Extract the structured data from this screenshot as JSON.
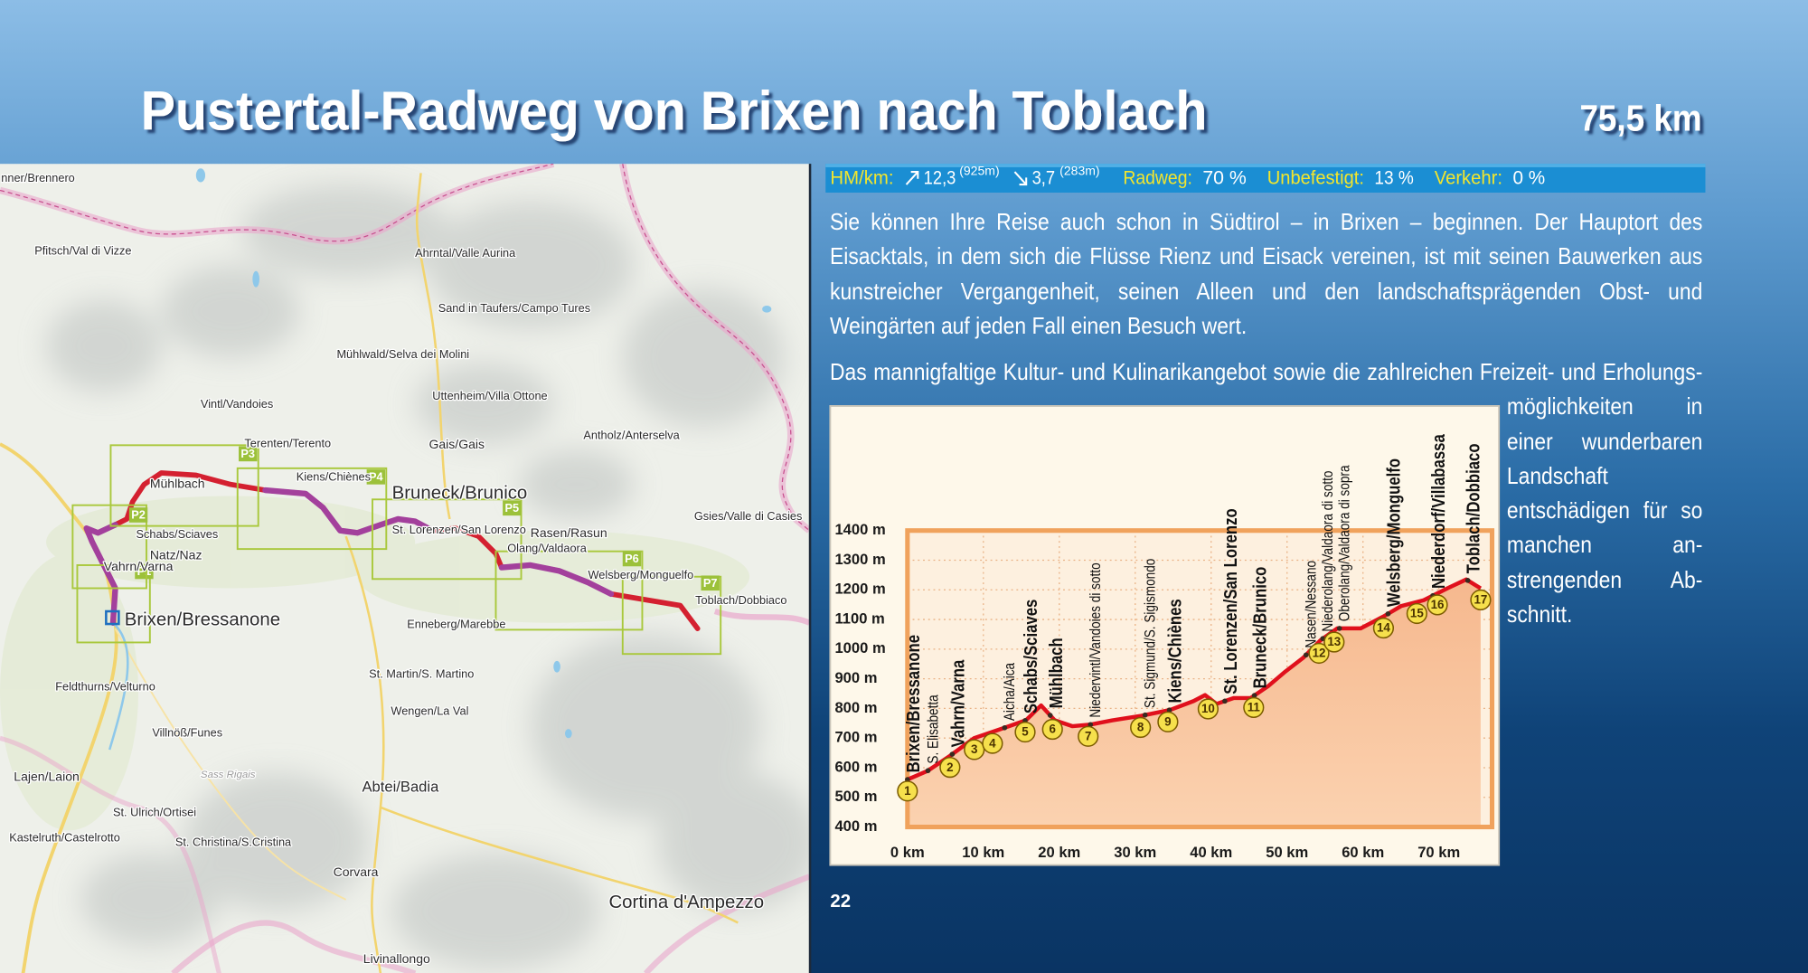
{
  "header": {
    "title": "Pustertal-Radweg von Brixen nach Toblach",
    "distance": "75,5 km"
  },
  "stats": {
    "hm_label": "HM/km:",
    "ascent": "12,3",
    "ascent_total": "(925m)",
    "descent": "3,7",
    "descent_total": "(283m)",
    "items": [
      {
        "label": "Radweg:",
        "value": "70 %"
      },
      {
        "label": "Unbefestigt:",
        "value": "13 %"
      },
      {
        "label": "Verkehr:",
        "value": "0 %"
      }
    ]
  },
  "text": {
    "paragraphs": [
      "Sie können Ihre Reise auch schon in Südtirol – in Brixen – beginnen. Der Hauptort des Eisacktals, in dem sich die Flüsse Rienz und Eisack vereinen, ist mit seinen Bauwerken aus kunstreicher Vergangenheit, seinen Alleen und den landschafts­prägenden Obst- und Weingärten auf jeden Fall einen Besuch wert.",
      "Das mannigfaltige Kultur- und Kulinarikangebot sowie die zahlreichen Freizeit- und Erholungs­möglichkeiten in einer wunderba­ren Landschaft entschädigen für so manchen an­strengenden Ab­schnitt."
    ]
  },
  "map": {
    "labels": [
      "nner/Brennero",
      "Pfitsch/Val di Vizze",
      "Ahrntal/Valle Aurina",
      "Sand in Taufers/Campo Tures",
      "Mühlwald/Selva dei Molini",
      "Uttenheim/Villa Ottone",
      "Vintl/Vandoies",
      "Gais/Gais",
      "Antholz/Anterselva",
      "Terenten/Terento",
      "Mühlbach",
      "Kiens/Chiènes",
      "Bruneck/Brunico",
      "Schabs/Sciaves",
      "St. Lorenzen/San Lorenzo",
      "Rasen/Rasun",
      "Gsies/Valle di Casies",
      "Natz/Naz",
      "Olang/Valdaora",
      "Vahrn/Varna",
      "Welsberg/Monguelfo",
      "Toblach/Dobbiaco",
      "Brixen/Bressanone",
      "Enneberg/Marebbe",
      "St. Martin/S. Martino",
      "Feldthurns/Velturno",
      "Wengen/La Val",
      "Villnöß/Funes",
      "Lajen/Laion",
      "Sass Rigais",
      "Abtei/Badia",
      "St. Ulrich/Ortisei",
      "Kastelruth/Castelrotto",
      "St. Christina/S.Cristina",
      "Corvara",
      "Cortina d'Ampezzo",
      "Livinallongo"
    ],
    "sections": [
      "P1",
      "P2",
      "P3",
      "P4",
      "P5",
      "P6",
      "P7"
    ]
  },
  "chart_data": {
    "type": "area",
    "x": [
      0,
      2.7,
      5.6,
      8.8,
      11.1,
      13.4,
      15.6,
      17.6,
      19.4,
      21.7,
      24,
      27,
      30.8,
      34.6,
      37.7,
      39.2,
      40.7,
      43,
      45.2,
      47.5,
      49.8,
      52.1,
      54.4,
      56.6,
      59.7,
      62.7,
      65,
      68,
      71.1,
      73.6,
      75.5
    ],
    "values": [
      560,
      590,
      640,
      700,
      720,
      740,
      760,
      810,
      760,
      740,
      745,
      760,
      775,
      795,
      825,
      845,
      815,
      835,
      835,
      875,
      925,
      970,
      1030,
      1070,
      1070,
      1110,
      1145,
      1165,
      1205,
      1235,
      1205
    ],
    "color": "#e0101c",
    "fill_color": "#f6b88e",
    "xlim": [
      0,
      77
    ],
    "ylim": [
      400,
      1400
    ],
    "xticks": [
      {
        "value": 0,
        "label": "0 km"
      },
      {
        "value": 10,
        "label": "10 km"
      },
      {
        "value": 20,
        "label": "20 km"
      },
      {
        "value": 30,
        "label": "30 km"
      },
      {
        "value": 40,
        "label": "40 km"
      },
      {
        "value": 50,
        "label": "50 km"
      },
      {
        "value": 60,
        "label": "60 km"
      },
      {
        "value": 70,
        "label": "70 km"
      }
    ],
    "yticks": [
      {
        "value": 400,
        "label": "400 m"
      },
      {
        "value": 500,
        "label": "500 m"
      },
      {
        "value": 600,
        "label": "600 m"
      },
      {
        "value": 700,
        "label": "700 m"
      },
      {
        "value": 800,
        "label": "800 m"
      },
      {
        "value": 900,
        "label": "900 m"
      },
      {
        "value": 1000,
        "label": "1000 m"
      },
      {
        "value": 1100,
        "label": "1100 m"
      },
      {
        "value": 1200,
        "label": "1200 m"
      },
      {
        "value": 1300,
        "label": "1300 m"
      },
      {
        "value": 1400,
        "label": "1400 m"
      }
    ],
    "grid": true,
    "stops": {
      "labels": [
        "1",
        "2",
        "3",
        "4",
        "5",
        "6",
        "7",
        "8",
        "9",
        "10",
        "11",
        "12",
        "13",
        "14",
        "15",
        "16",
        "17"
      ],
      "x": [
        0,
        5.6,
        8.8,
        11.2,
        15.5,
        19.1,
        23.8,
        30.7,
        34.3,
        39.6,
        45.6,
        54.2,
        56.2,
        62.7,
        67.1,
        69.8,
        75.5
      ]
    },
    "places": {
      "names": [
        "Brixen/Bressanone",
        "S. Elisabetta",
        "Vahrn/Varna",
        "Aicha/Aica",
        "Schabs/Sciaves",
        "Mühlbach",
        "Niedervintl/Vandoies di sotto",
        "St. Sigmund/S. Sigismondo",
        "Kiens/Chiènes",
        "St. Lorenzen/San Lorenzo",
        "Bruneck/Brunico",
        "Nasen/Nessano",
        "Niederolang/Valdaora di sotto",
        "Oberolang/Valdaora di sopra",
        "Welsberg/Monguelfo",
        "Niederdorf/Villabassa",
        "Toblach/Dobbiaco"
      ],
      "x": [
        0,
        2.7,
        5.9,
        12.8,
        15.5,
        18.8,
        24.1,
        31.3,
        34.5,
        41.8,
        45.7,
        52.5,
        54.7,
        56.9,
        63.3,
        69.2,
        73.8
      ],
      "bold": [
        true,
        false,
        true,
        false,
        true,
        true,
        false,
        false,
        true,
        true,
        true,
        false,
        false,
        false,
        true,
        true,
        true
      ]
    }
  },
  "page_number": "22"
}
